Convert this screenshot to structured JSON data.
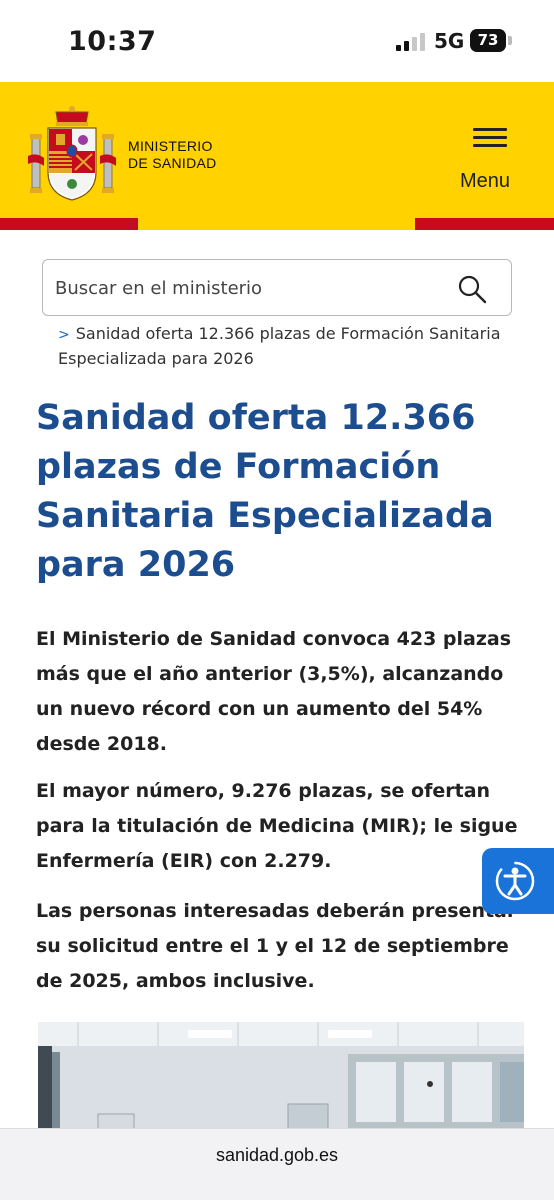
{
  "status_bar": {
    "time": "10:37",
    "network": "5G",
    "battery": "73"
  },
  "header": {
    "ministry_line1": "MINISTERIO",
    "ministry_line2": "DE SANIDAD",
    "menu_label": "Menu",
    "colors": {
      "yellow": "#FFD200",
      "red": "#C60B1E"
    }
  },
  "search": {
    "placeholder": "Buscar en el ministerio"
  },
  "breadcrumb": {
    "current": "Sanidad oferta 12.366 plazas de Formación Sanitaria Especializada para 2026"
  },
  "article": {
    "title": "Sanidad oferta 12.366 plazas de Formación Sanitaria Especializada para 2026",
    "lead1": "El Ministerio de Sanidad convoca 423 plazas más que el año anterior (3,5%), alcanzando un nuevo récord con un aumento del 54% desde 2018.",
    "lead2": "El mayor número, 9.276 plazas, se ofertan para la titulación de Medicina (MIR); le sigue Enfermería (EIR) con 2.279.",
    "lead3": "Las personas interesadas deberán presentar su solicitud entre el 1 y el 12 de septiembre de 2025, ambos inclusive.",
    "title_color": "#1c4d8f"
  },
  "accessibility": {
    "icon": "accessibility-icon",
    "color": "#1a73d9"
  },
  "browser": {
    "url": "sanidad.gob.es"
  }
}
